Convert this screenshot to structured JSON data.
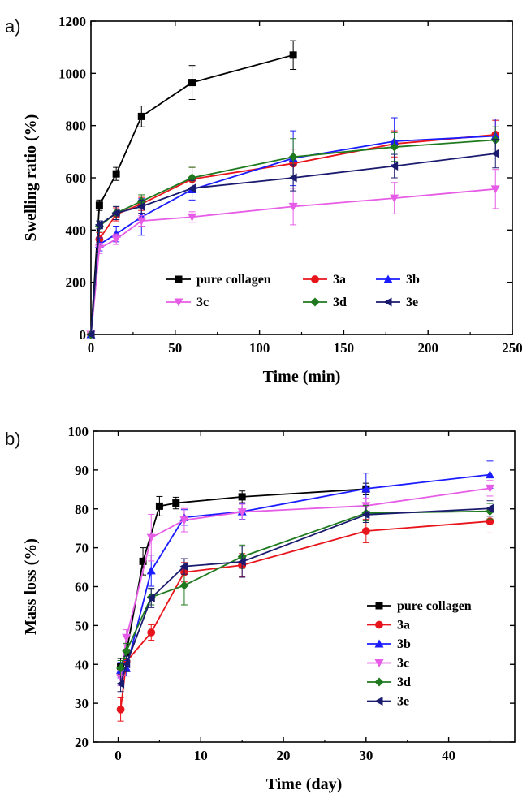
{
  "panels": [
    {
      "label": "a)"
    },
    {
      "label": "b)"
    }
  ],
  "chart_data": [
    {
      "type": "line",
      "xlabel": "Time (min)",
      "ylabel": "Swelling ratio (%)",
      "xlim": [
        0,
        250
      ],
      "ylim": [
        0,
        1200
      ],
      "xticks": [
        "0",
        "50",
        "100",
        "150",
        "200",
        "250"
      ],
      "yticks": [
        "0",
        "200",
        "400",
        "600",
        "800",
        "1000",
        "1200"
      ],
      "legend_position": "lower-right, 3 columns",
      "series": [
        {
          "name": "pure collagen",
          "color": "#000000",
          "marker": "square",
          "points": [
            [
              0,
              0
            ],
            [
              5,
              495
            ],
            [
              15,
              615
            ],
            [
              30,
              835
            ],
            [
              60,
              965
            ],
            [
              120,
              1070
            ]
          ],
          "errors": [
            0,
            20,
            25,
            40,
            65,
            55
          ]
        },
        {
          "name": "3a",
          "color": "#e8141b",
          "marker": "circle",
          "points": [
            [
              0,
              0
            ],
            [
              5,
              365
            ],
            [
              15,
              460
            ],
            [
              30,
              500
            ],
            [
              60,
              595
            ],
            [
              120,
              655
            ],
            [
              180,
              730
            ],
            [
              240,
              765
            ]
          ],
          "errors": [
            0,
            25,
            25,
            25,
            45,
            55,
            50,
            55
          ]
        },
        {
          "name": "3b",
          "color": "#1b1bff",
          "marker": "triangle-up",
          "points": [
            [
              0,
              0
            ],
            [
              5,
              345
            ],
            [
              15,
              385
            ],
            [
              30,
              450
            ],
            [
              60,
              555
            ],
            [
              120,
              675
            ],
            [
              180,
              740
            ],
            [
              240,
              760
            ]
          ],
          "errors": [
            0,
            25,
            30,
            70,
            40,
            105,
            90,
            65
          ]
        },
        {
          "name": "3c",
          "color": "#e65ce6",
          "marker": "triangle-down",
          "points": [
            [
              0,
              0
            ],
            [
              5,
              330
            ],
            [
              15,
              365
            ],
            [
              30,
              435
            ],
            [
              60,
              450
            ],
            [
              120,
              490
            ],
            [
              180,
              522
            ],
            [
              240,
              557
            ]
          ],
          "errors": [
            0,
            20,
            20,
            20,
            20,
            70,
            60,
            75
          ]
        },
        {
          "name": "3d",
          "color": "#1f7a1f",
          "marker": "diamond",
          "points": [
            [
              0,
              0
            ],
            [
              5,
              415
            ],
            [
              15,
              465
            ],
            [
              30,
              510
            ],
            [
              60,
              600
            ],
            [
              120,
              680
            ],
            [
              180,
              718
            ],
            [
              240,
              745
            ]
          ],
          "errors": [
            0,
            20,
            25,
            25,
            40,
            70,
            55,
            50
          ]
        },
        {
          "name": "3e",
          "color": "#1a1a6e",
          "marker": "triangle-left",
          "points": [
            [
              0,
              0
            ],
            [
              5,
              420
            ],
            [
              15,
              465
            ],
            [
              30,
              490
            ],
            [
              60,
              560
            ],
            [
              120,
              600
            ],
            [
              180,
              645
            ],
            [
              240,
              693
            ]
          ],
          "errors": [
            0,
            15,
            25,
            25,
            30,
            50,
            45,
            55
          ]
        }
      ]
    },
    {
      "type": "line",
      "xlabel": "Time (day)",
      "ylabel": "Mass loss (%)",
      "xlim": [
        -3,
        48
      ],
      "ylim": [
        20,
        100
      ],
      "xticks": [
        "0",
        "10",
        "20",
        "30",
        "40"
      ],
      "yticks": [
        "20",
        "30",
        "40",
        "50",
        "60",
        "70",
        "80",
        "90",
        "100"
      ],
      "legend_position": "lower-right, 1 column",
      "series": [
        {
          "name": "pure collagen",
          "color": "#000000",
          "marker": "square",
          "points": [
            [
              0.3,
              39.5
            ],
            [
              1,
              43
            ],
            [
              3,
              66.5
            ],
            [
              5,
              80.7
            ],
            [
              7,
              81.5
            ],
            [
              15,
              83.1
            ],
            [
              30,
              85.1
            ]
          ],
          "errors": [
            2,
            2,
            3.5,
            2.5,
            1.5,
            1.5,
            1.5
          ]
        },
        {
          "name": "3a",
          "color": "#e8141b",
          "marker": "circle",
          "points": [
            [
              0.3,
              28.4
            ],
            [
              1,
              40.7
            ],
            [
              4,
              48.2
            ],
            [
              8,
              63.7
            ],
            [
              15,
              65.5
            ],
            [
              30,
              74.3
            ],
            [
              45,
              76.8
            ]
          ],
          "errors": [
            3,
            2,
            2,
            2.5,
            3,
            3,
            3
          ]
        },
        {
          "name": "3b",
          "color": "#1b1bff",
          "marker": "triangle-up",
          "points": [
            [
              0.3,
              38.5
            ],
            [
              1,
              39
            ],
            [
              4,
              64.1
            ],
            [
              8,
              77.8
            ],
            [
              15,
              79.3
            ],
            [
              30,
              85.2
            ],
            [
              45,
              88.8
            ]
          ],
          "errors": [
            2,
            2,
            4,
            2,
            2,
            4,
            3.5
          ]
        },
        {
          "name": "3c",
          "color": "#e65ce6",
          "marker": "triangle-down",
          "points": [
            [
              0.3,
              36.5
            ],
            [
              1,
              46.9
            ],
            [
              4,
              72.6
            ],
            [
              8,
              77.1
            ],
            [
              15,
              79.2
            ],
            [
              30,
              80.8
            ],
            [
              45,
              85.3
            ]
          ],
          "errors": [
            2,
            2,
            6,
            3,
            2,
            2,
            2
          ]
        },
        {
          "name": "3d",
          "color": "#1f7a1f",
          "marker": "diamond",
          "points": [
            [
              0.3,
              39
            ],
            [
              1,
              43.4
            ],
            [
              4,
              57.3
            ],
            [
              8,
              60.3
            ],
            [
              15,
              67.7
            ],
            [
              30,
              78.9
            ],
            [
              45,
              79.4
            ]
          ],
          "errors": [
            2,
            2,
            2,
            5,
            3,
            2,
            2
          ]
        },
        {
          "name": "3e",
          "color": "#1a1a6e",
          "marker": "triangle-left",
          "points": [
            [
              0.3,
              35
            ],
            [
              1,
              40.1
            ],
            [
              4,
              57.1
            ],
            [
              8,
              65.2
            ],
            [
              15,
              66.4
            ],
            [
              30,
              78.5
            ],
            [
              45,
              80.1
            ]
          ],
          "errors": [
            2,
            2,
            2.5,
            2,
            4,
            2,
            2
          ]
        }
      ]
    }
  ]
}
